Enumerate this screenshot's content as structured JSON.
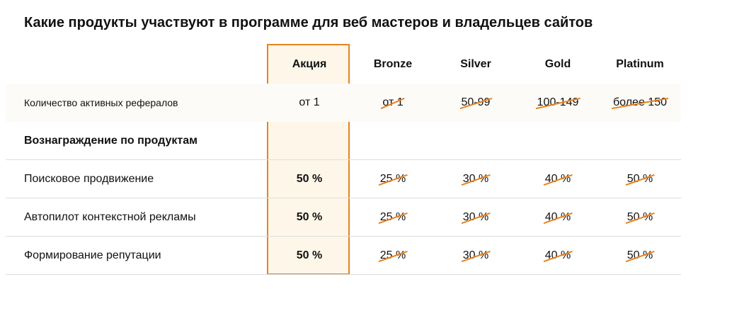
{
  "title": "Какие продукты участвуют в программе для веб мастеров и владельцев сайтов",
  "columns": [
    "Акция",
    "Bronze",
    "Silver",
    "Gold",
    "Platinum"
  ],
  "referrals_row": {
    "label": "Количество активных рефералов",
    "promo": "от 1",
    "values": [
      "от 1",
      "50-99",
      "100-149",
      "более 150"
    ]
  },
  "section_heading": "Вознаграждение по продуктам",
  "products": [
    {
      "label": "Поисковое продвижение",
      "promo": "50 %",
      "values": [
        "25 %",
        "30 %",
        "40 %",
        "50 %"
      ]
    },
    {
      "label": "Автопилот контекстной рекламы",
      "promo": "50 %",
      "values": [
        "25 %",
        "30 %",
        "40 %",
        "50 %"
      ]
    },
    {
      "label": "Формирование репутации",
      "promo": "50 %",
      "values": [
        "25 %",
        "30 %",
        "40 %",
        "50 %"
      ]
    }
  ],
  "colors": {
    "accent": "#e8821e",
    "promo_bg": "#fef7e9",
    "divider": "#dddddd"
  }
}
